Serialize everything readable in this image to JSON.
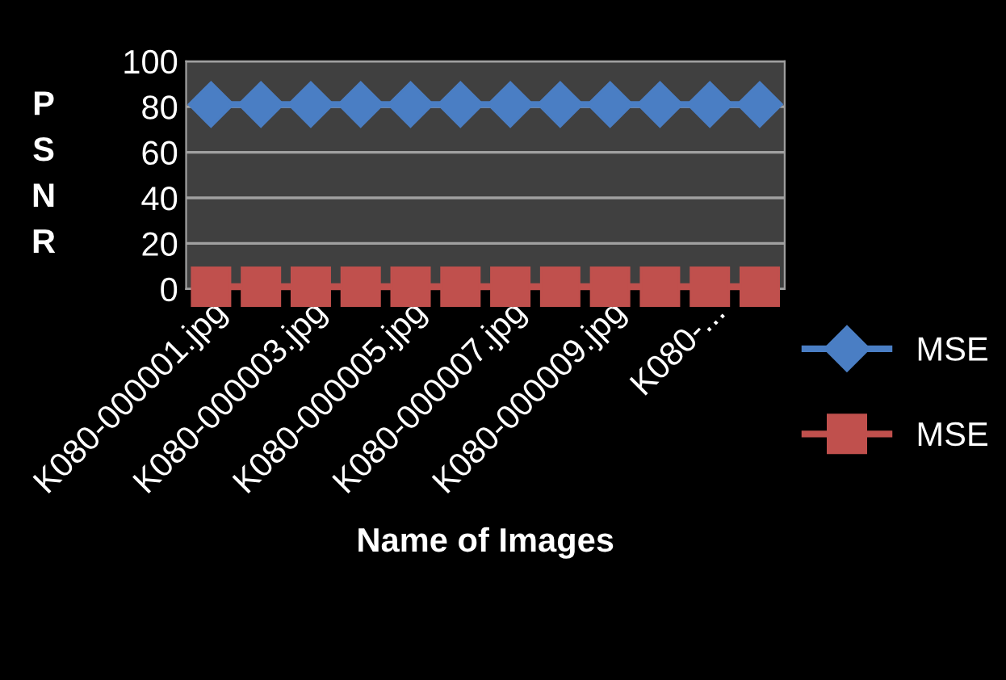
{
  "chart_data": {
    "type": "line",
    "xlabel": "Name of Images",
    "ylabel": "PSNR",
    "categories": [
      "K080-000001.jpg",
      null,
      "K080-000003.jpg",
      null,
      "K080-000005.jpg",
      null,
      "K080-000007.jpg",
      null,
      "K080-000009.jpg",
      null,
      "K080-...",
      null
    ],
    "series": [
      {
        "name": "MSE",
        "color": "#4a7ec4",
        "marker": "diamond",
        "values": [
          81,
          81,
          81,
          81,
          81,
          81,
          81,
          81,
          81,
          81,
          81,
          81
        ]
      },
      {
        "name": "MSE",
        "color": "#c0504d",
        "marker": "square",
        "values": [
          1,
          1,
          1,
          1,
          1,
          1,
          1,
          1,
          1,
          1,
          1,
          1
        ]
      }
    ],
    "ylim": [
      0,
      100
    ],
    "yticks": [
      0,
      20,
      40,
      60,
      80,
      100
    ],
    "grid": "y",
    "legend": "right"
  }
}
